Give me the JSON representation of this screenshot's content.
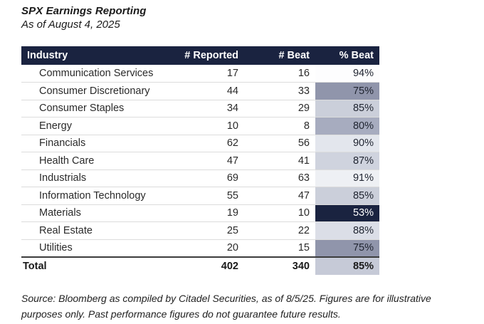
{
  "header": {
    "title": "SPX Earnings Reporting",
    "subtitle": "As of August 4, 2025"
  },
  "chart_data": {
    "type": "table",
    "title": "SPX Earnings Reporting",
    "subtitle": "As of August 4, 2025",
    "columns": [
      "Industry",
      "# Reported",
      "# Beat",
      "% Beat"
    ],
    "rows": [
      [
        "Communication Services",
        17,
        16,
        "94%"
      ],
      [
        "Consumer Discretionary",
        44,
        33,
        "75%"
      ],
      [
        "Consumer Staples",
        34,
        29,
        "85%"
      ],
      [
        "Energy",
        10,
        8,
        "80%"
      ],
      [
        "Financials",
        62,
        56,
        "90%"
      ],
      [
        "Health Care",
        47,
        41,
        "87%"
      ],
      [
        "Industrials",
        69,
        63,
        "91%"
      ],
      [
        "Information Technology",
        55,
        47,
        "85%"
      ],
      [
        "Materials",
        19,
        10,
        "53%"
      ],
      [
        "Real Estate",
        25,
        22,
        "88%"
      ],
      [
        "Utilities",
        20,
        15,
        "75%"
      ]
    ],
    "total_row": [
      "Total",
      402,
      340,
      "85%"
    ],
    "layout_hints": "percent-beat column heat-shaded from dark navy (lowest) to white (highest)"
  },
  "table": {
    "columns": [
      "Industry",
      "# Reported",
      "# Beat",
      "% Beat"
    ],
    "rows": [
      {
        "industry": "Communication Services",
        "reported": "17",
        "beat": "16",
        "pct_beat": "94%",
        "pct_bg": "#fdfdfe",
        "pct_fg": "#1f2430"
      },
      {
        "industry": "Consumer Discretionary",
        "reported": "44",
        "beat": "33",
        "pct_beat": "75%",
        "pct_bg": "#9095ab",
        "pct_fg": "#1f2430"
      },
      {
        "industry": "Consumer Staples",
        "reported": "34",
        "beat": "29",
        "pct_beat": "85%",
        "pct_bg": "#cbcfda",
        "pct_fg": "#1f2430"
      },
      {
        "industry": "Energy",
        "reported": "10",
        "beat": "8",
        "pct_beat": "80%",
        "pct_bg": "#a7acbf",
        "pct_fg": "#1f2430"
      },
      {
        "industry": "Financials",
        "reported": "62",
        "beat": "56",
        "pct_beat": "90%",
        "pct_bg": "#e3e6ed",
        "pct_fg": "#1f2430"
      },
      {
        "industry": "Health Care",
        "reported": "47",
        "beat": "41",
        "pct_beat": "87%",
        "pct_bg": "#cfd3de",
        "pct_fg": "#1f2430"
      },
      {
        "industry": "Industrials",
        "reported": "69",
        "beat": "63",
        "pct_beat": "91%",
        "pct_bg": "#eef0f4",
        "pct_fg": "#1f2430"
      },
      {
        "industry": "Information Technology",
        "reported": "55",
        "beat": "47",
        "pct_beat": "85%",
        "pct_bg": "#cbcfda",
        "pct_fg": "#1f2430"
      },
      {
        "industry": "Materials",
        "reported": "19",
        "beat": "10",
        "pct_beat": "53%",
        "pct_bg": "#1a2340",
        "pct_fg": "#ffffff"
      },
      {
        "industry": "Real Estate",
        "reported": "25",
        "beat": "22",
        "pct_beat": "88%",
        "pct_bg": "#dbdee7",
        "pct_fg": "#1f2430"
      },
      {
        "industry": "Utilities",
        "reported": "20",
        "beat": "15",
        "pct_beat": "75%",
        "pct_bg": "#9095ab",
        "pct_fg": "#1f2430"
      }
    ],
    "total": {
      "label": "Total",
      "reported": "402",
      "beat": "340",
      "pct_beat": "85%",
      "pct_bg": "#c6cad7",
      "pct_fg": "#1a1a1a"
    }
  },
  "footnote": {
    "line1": "Source: Bloomberg as compiled by Citadel Securities, as of 8/5/25. Figures are for illustrative",
    "line2": "purposes only. Past performance figures do not guarantee future results."
  },
  "colors": {
    "header_bg": "#1a2340",
    "header_fg": "#ffffff",
    "row_divider": "#dcdcdc",
    "total_rule": "#3c3c3c",
    "heat_low": "#1a2340",
    "heat_high": "#ffffff"
  }
}
